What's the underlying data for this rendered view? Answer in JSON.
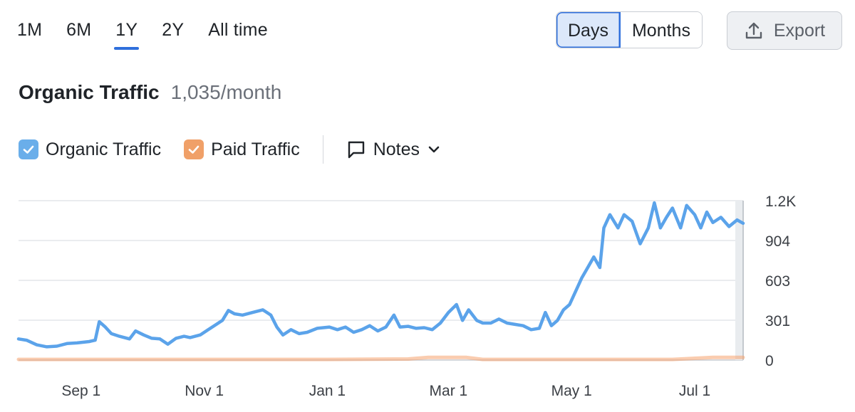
{
  "periods": [
    "1M",
    "6M",
    "1Y",
    "2Y",
    "All time"
  ],
  "active_period": "1Y",
  "granularity": {
    "days": "Days",
    "months": "Months",
    "active": "Days"
  },
  "export_label": "Export",
  "title": "Organic Traffic",
  "subtitle": "1,035/month",
  "legend": {
    "organic": "Organic Traffic",
    "paid": "Paid Traffic",
    "notes": "Notes"
  },
  "colors": {
    "organic": "#5ba3ea",
    "paid": "#f5a36e",
    "organic_box": "#6aaeea",
    "paid_box": "#f0a068",
    "accent": "#2f6fdc"
  },
  "chart_data": {
    "type": "line",
    "title": "",
    "xlabel": "",
    "ylabel": "",
    "x_ticks": [
      "Sep 1",
      "Nov 1",
      "Jan 1",
      "Mar 1",
      "May 1",
      "Jul 1"
    ],
    "y_ticks": [
      "0",
      "301",
      "603",
      "904",
      "1.2K"
    ],
    "ylim": [
      0,
      1206
    ],
    "x_range": [
      "2023-08-01",
      "2024-07-25"
    ],
    "grid": true,
    "legend": "top-left",
    "series": [
      {
        "name": "Organic Traffic",
        "color": "#5ba3ea",
        "points": [
          [
            "2023-08-01",
            160
          ],
          [
            "2023-08-05",
            150
          ],
          [
            "2023-08-10",
            115
          ],
          [
            "2023-08-15",
            100
          ],
          [
            "2023-08-20",
            105
          ],
          [
            "2023-08-25",
            125
          ],
          [
            "2023-08-30",
            130
          ],
          [
            "2023-09-05",
            140
          ],
          [
            "2023-09-08",
            150
          ],
          [
            "2023-09-10",
            290
          ],
          [
            "2023-09-13",
            250
          ],
          [
            "2023-09-16",
            200
          ],
          [
            "2023-09-20",
            180
          ],
          [
            "2023-09-25",
            160
          ],
          [
            "2023-09-28",
            220
          ],
          [
            "2023-10-02",
            190
          ],
          [
            "2023-10-06",
            165
          ],
          [
            "2023-10-10",
            160
          ],
          [
            "2023-10-14",
            120
          ],
          [
            "2023-10-18",
            165
          ],
          [
            "2023-10-22",
            180
          ],
          [
            "2023-10-25",
            170
          ],
          [
            "2023-10-30",
            190
          ],
          [
            "2023-11-03",
            230
          ],
          [
            "2023-11-07",
            270
          ],
          [
            "2023-11-10",
            300
          ],
          [
            "2023-11-13",
            375
          ],
          [
            "2023-11-16",
            350
          ],
          [
            "2023-11-20",
            340
          ],
          [
            "2023-11-25",
            360
          ],
          [
            "2023-11-30",
            380
          ],
          [
            "2023-12-04",
            340
          ],
          [
            "2023-12-07",
            250
          ],
          [
            "2023-12-10",
            190
          ],
          [
            "2023-12-14",
            230
          ],
          [
            "2023-12-18",
            200
          ],
          [
            "2023-12-22",
            210
          ],
          [
            "2023-12-27",
            240
          ],
          [
            "2024-01-02",
            250
          ],
          [
            "2024-01-06",
            230
          ],
          [
            "2024-01-10",
            250
          ],
          [
            "2024-01-14",
            210
          ],
          [
            "2024-01-18",
            230
          ],
          [
            "2024-01-22",
            260
          ],
          [
            "2024-01-26",
            220
          ],
          [
            "2024-01-30",
            250
          ],
          [
            "2024-02-03",
            340
          ],
          [
            "2024-02-06",
            250
          ],
          [
            "2024-02-10",
            255
          ],
          [
            "2024-02-14",
            240
          ],
          [
            "2024-02-18",
            245
          ],
          [
            "2024-02-22",
            230
          ],
          [
            "2024-02-26",
            280
          ],
          [
            "2024-03-01",
            360
          ],
          [
            "2024-03-05",
            420
          ],
          [
            "2024-03-08",
            300
          ],
          [
            "2024-03-11",
            380
          ],
          [
            "2024-03-15",
            300
          ],
          [
            "2024-03-18",
            280
          ],
          [
            "2024-03-22",
            280
          ],
          [
            "2024-03-26",
            310
          ],
          [
            "2024-03-30",
            280
          ],
          [
            "2024-04-03",
            270
          ],
          [
            "2024-04-07",
            260
          ],
          [
            "2024-04-11",
            230
          ],
          [
            "2024-04-15",
            240
          ],
          [
            "2024-04-18",
            360
          ],
          [
            "2024-04-21",
            260
          ],
          [
            "2024-04-24",
            300
          ],
          [
            "2024-04-27",
            380
          ],
          [
            "2024-04-30",
            420
          ],
          [
            "2024-05-03",
            520
          ],
          [
            "2024-05-06",
            620
          ],
          [
            "2024-05-09",
            700
          ],
          [
            "2024-05-12",
            780
          ],
          [
            "2024-05-15",
            700
          ],
          [
            "2024-05-17",
            1000
          ],
          [
            "2024-05-20",
            1100
          ],
          [
            "2024-05-24",
            1000
          ],
          [
            "2024-05-27",
            1100
          ],
          [
            "2024-05-31",
            1050
          ],
          [
            "2024-06-04",
            880
          ],
          [
            "2024-06-08",
            1000
          ],
          [
            "2024-06-11",
            1190
          ],
          [
            "2024-06-14",
            1000
          ],
          [
            "2024-06-17",
            1080
          ],
          [
            "2024-06-20",
            1150
          ],
          [
            "2024-06-24",
            1000
          ],
          [
            "2024-06-27",
            1170
          ],
          [
            "2024-07-01",
            1100
          ],
          [
            "2024-07-04",
            1000
          ],
          [
            "2024-07-07",
            1120
          ],
          [
            "2024-07-10",
            1040
          ],
          [
            "2024-07-14",
            1080
          ],
          [
            "2024-07-18",
            1010
          ],
          [
            "2024-07-22",
            1060
          ],
          [
            "2024-07-25",
            1035
          ]
        ]
      },
      {
        "name": "Paid Traffic",
        "color": "#f5a36e",
        "points": [
          [
            "2023-08-01",
            5
          ],
          [
            "2023-11-01",
            5
          ],
          [
            "2024-01-01",
            5
          ],
          [
            "2024-02-10",
            8
          ],
          [
            "2024-02-20",
            20
          ],
          [
            "2024-03-10",
            20
          ],
          [
            "2024-03-18",
            5
          ],
          [
            "2024-06-20",
            5
          ],
          [
            "2024-07-10",
            20
          ],
          [
            "2024-07-25",
            20
          ]
        ]
      }
    ]
  }
}
